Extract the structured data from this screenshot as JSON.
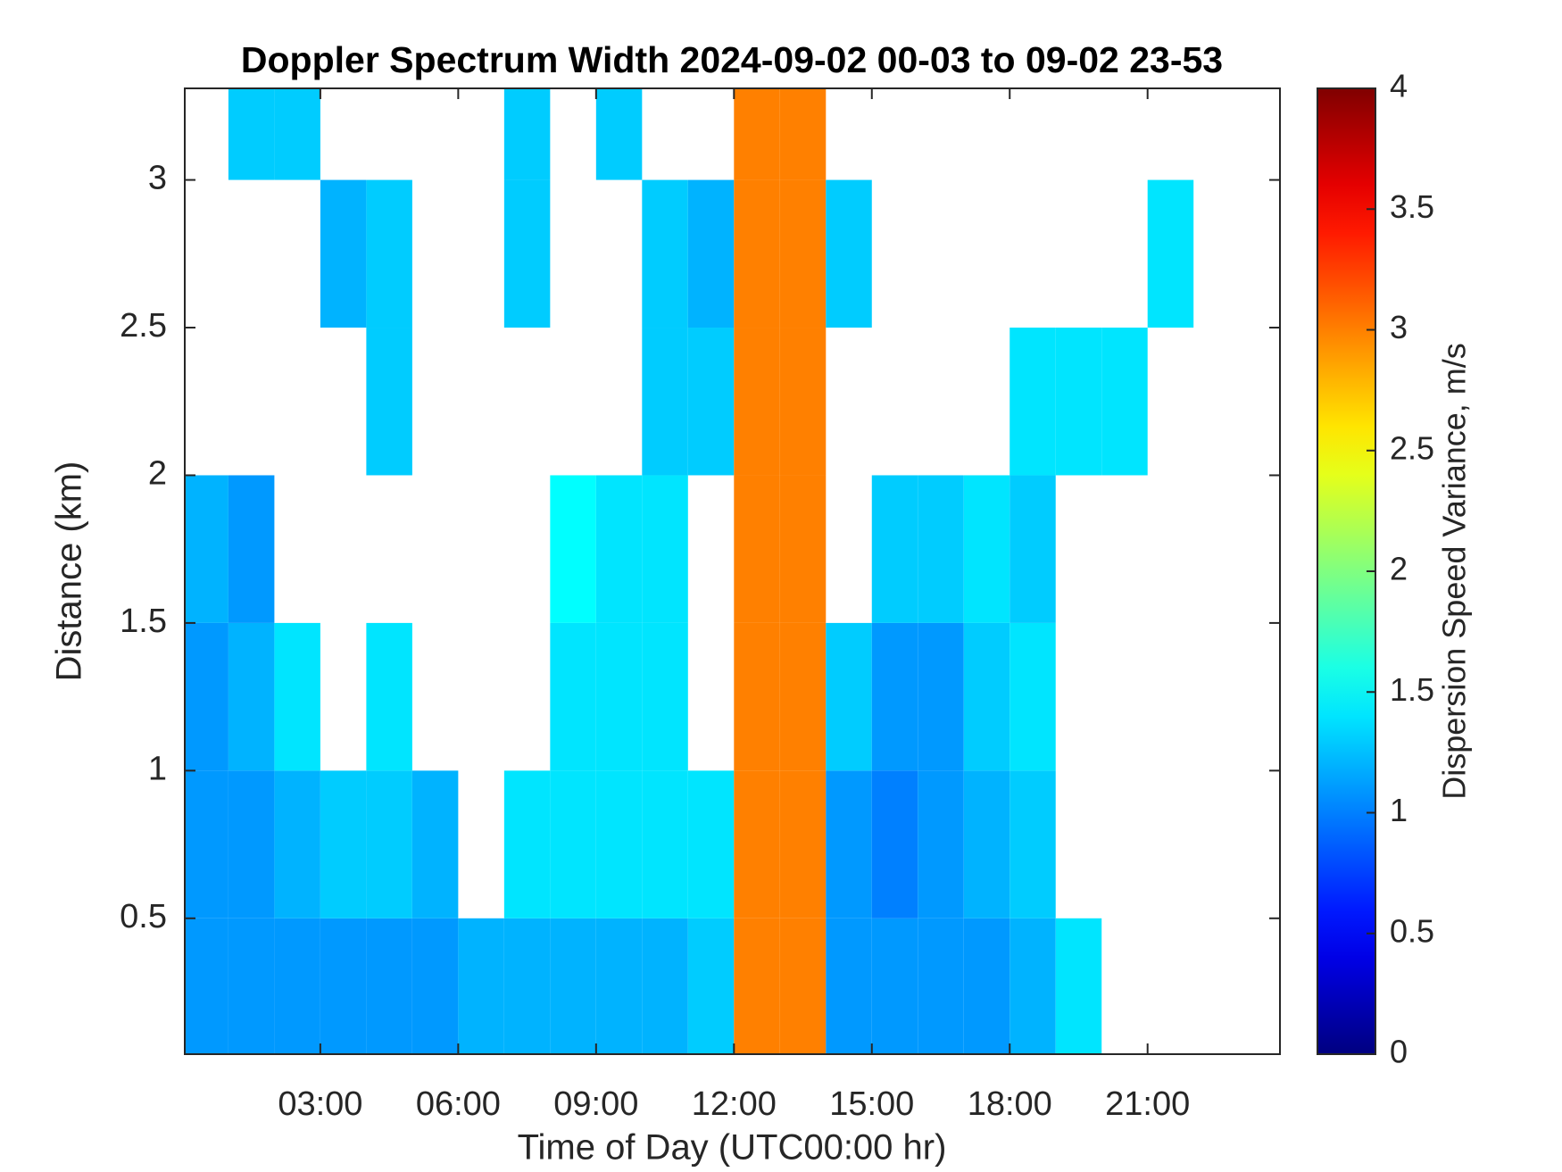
{
  "chart_data": {
    "type": "heatmap",
    "title": "Doppler Spectrum Width 2024-09-02 00-03 to 09-02 23-53",
    "x_label": "Time of Day (UTC00:00 hr)",
    "y_label": "Distance (km)",
    "colorbar_label": "Dispersion Speed Variance, m/s",
    "colormap": "jet",
    "xbins": [
      0.05,
      1,
      2,
      3,
      4,
      5,
      6,
      7,
      8,
      9,
      10,
      11,
      12,
      13,
      14,
      15,
      16,
      17,
      18,
      19,
      20,
      21,
      22,
      23,
      23.88
    ],
    "ybins": [
      0.04,
      0.5,
      1.0,
      1.5,
      2.0,
      2.5,
      3.0,
      3.31
    ],
    "values": [
      [
        1.1,
        1.1,
        1.1,
        1.1,
        1.1,
        1.1,
        1.2,
        1.2,
        1.2,
        1.2,
        1.2,
        1.3,
        3.0,
        3.0,
        1.1,
        1.1,
        1.1,
        1.1,
        1.2,
        1.4,
        null,
        null,
        null,
        null
      ],
      [
        1.1,
        1.1,
        1.2,
        1.3,
        1.3,
        1.2,
        null,
        1.4,
        1.4,
        1.4,
        1.4,
        1.4,
        3.0,
        3.0,
        1.1,
        1.0,
        1.1,
        1.2,
        1.3,
        null,
        null,
        null,
        null,
        null
      ],
      [
        1.1,
        1.2,
        1.4,
        null,
        1.4,
        null,
        null,
        null,
        1.4,
        1.4,
        1.4,
        null,
        3.0,
        3.0,
        1.3,
        1.1,
        1.1,
        1.3,
        1.4,
        null,
        null,
        null,
        null,
        null
      ],
      [
        1.2,
        1.1,
        null,
        null,
        null,
        null,
        null,
        null,
        1.5,
        1.4,
        1.4,
        null,
        3.0,
        3.0,
        null,
        1.3,
        1.3,
        1.4,
        1.3,
        null,
        null,
        null,
        null,
        null
      ],
      [
        null,
        null,
        null,
        null,
        1.3,
        null,
        null,
        null,
        null,
        null,
        1.3,
        1.3,
        3.0,
        3.0,
        null,
        null,
        null,
        null,
        1.4,
        1.4,
        1.4,
        null,
        null,
        null
      ],
      [
        null,
        null,
        null,
        1.2,
        1.3,
        null,
        null,
        1.3,
        null,
        null,
        1.3,
        1.2,
        3.0,
        3.0,
        1.3,
        null,
        null,
        null,
        null,
        null,
        null,
        1.4,
        null,
        null
      ],
      [
        null,
        1.3,
        1.3,
        null,
        null,
        null,
        null,
        1.3,
        null,
        1.3,
        null,
        null,
        3.0,
        3.0,
        null,
        null,
        null,
        null,
        null,
        null,
        null,
        null,
        null,
        null
      ]
    ],
    "xlim": [
      0.05,
      23.88
    ],
    "ylim": [
      0.04,
      3.31
    ],
    "xticks": [
      {
        "value": 3,
        "label": "03:00"
      },
      {
        "value": 6,
        "label": "06:00"
      },
      {
        "value": 9,
        "label": "09:00"
      },
      {
        "value": 12,
        "label": "12:00"
      },
      {
        "value": 15,
        "label": "15:00"
      },
      {
        "value": 18,
        "label": "18:00"
      },
      {
        "value": 21,
        "label": "21:00"
      }
    ],
    "yticks": [
      0.5,
      1,
      1.5,
      2,
      2.5,
      3
    ],
    "clim": [
      0,
      4
    ],
    "cticks": [
      0,
      0.5,
      1,
      1.5,
      2,
      2.5,
      3,
      3.5,
      4
    ]
  }
}
